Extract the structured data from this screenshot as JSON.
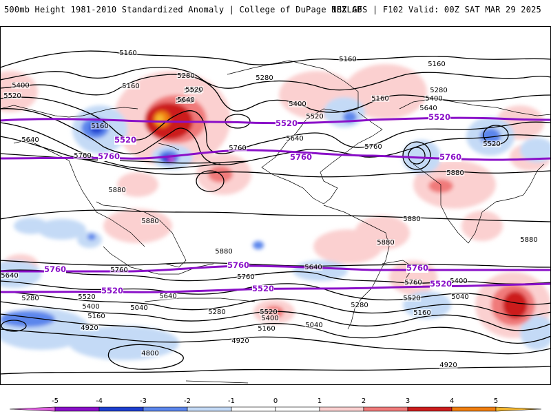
{
  "header": {
    "title": "500mb Height 1981-2010 Standardized Anomaly | College of DuPage NEXLAB",
    "run_info": "18Z GFS | F102 Valid: 00Z SAT MAR 29 2025"
  },
  "colors": {
    "anom_neg5": "#e060e0",
    "anom_neg4": "#8a10c8",
    "anom_neg3": "#1e3fcf",
    "anom_neg2": "#5c86ec",
    "anom_neg1": "#c4daf6",
    "anom_zero": "#ffffff",
    "anom_pos1": "#fbd0d0",
    "anom_pos2": "#f07a7a",
    "anom_pos3": "#cc1e1e",
    "anom_pos4": "#f07e10",
    "anom_pos5": "#f5b830",
    "height_contour": "#000000",
    "highlight_contour": "#8a10c8"
  },
  "contour_labels": [
    {
      "text": "5160"
    },
    {
      "text": "5400"
    },
    {
      "text": "5520"
    },
    {
      "text": "5160"
    },
    {
      "text": "5280"
    },
    {
      "text": "5400"
    },
    {
      "text": "5520"
    },
    {
      "text": "5640"
    },
    {
      "text": "5160"
    },
    {
      "text": "5640"
    },
    {
      "text": "5160"
    },
    {
      "text": "5160"
    },
    {
      "text": "5280"
    },
    {
      "text": "5160"
    },
    {
      "text": "5400"
    },
    {
      "text": "5640"
    },
    {
      "text": "5520"
    },
    {
      "text": "5640"
    },
    {
      "text": "5760"
    },
    {
      "text": "5280"
    },
    {
      "text": "5400"
    },
    {
      "text": "5640"
    },
    {
      "text": "5520"
    },
    {
      "text": "5760"
    },
    {
      "text": "5760"
    },
    {
      "text": "5880"
    },
    {
      "text": "5880"
    },
    {
      "text": "5880"
    },
    {
      "text": "5880"
    },
    {
      "text": "5880"
    },
    {
      "text": "5880"
    },
    {
      "text": "5880"
    },
    {
      "text": "5640"
    },
    {
      "text": "5760"
    },
    {
      "text": "5760"
    },
    {
      "text": "5640"
    },
    {
      "text": "5760"
    },
    {
      "text": "5640"
    },
    {
      "text": "5400"
    },
    {
      "text": "5280"
    },
    {
      "text": "5520"
    },
    {
      "text": "5400"
    },
    {
      "text": "5160"
    },
    {
      "text": "4920"
    },
    {
      "text": "5040"
    },
    {
      "text": "5280"
    },
    {
      "text": "5520"
    },
    {
      "text": "5400"
    },
    {
      "text": "5160"
    },
    {
      "text": "5040"
    },
    {
      "text": "5280"
    },
    {
      "text": "5520"
    },
    {
      "text": "5160"
    },
    {
      "text": "5040"
    },
    {
      "text": "4920"
    },
    {
      "text": "4800"
    },
    {
      "text": "4920"
    }
  ],
  "highlight_labels": [
    {
      "text": "5520"
    },
    {
      "text": "5520"
    },
    {
      "text": "5520"
    },
    {
      "text": "5760"
    },
    {
      "text": "5760"
    },
    {
      "text": "5760"
    },
    {
      "text": "5760"
    },
    {
      "text": "5760"
    },
    {
      "text": "5760"
    },
    {
      "text": "5520"
    },
    {
      "text": "5520"
    },
    {
      "text": "5520"
    }
  ],
  "colorbar": {
    "ticks": [
      "-5",
      "-4",
      "-3",
      "-2",
      "-1",
      "0",
      "1",
      "2",
      "3",
      "4",
      "5"
    ]
  }
}
